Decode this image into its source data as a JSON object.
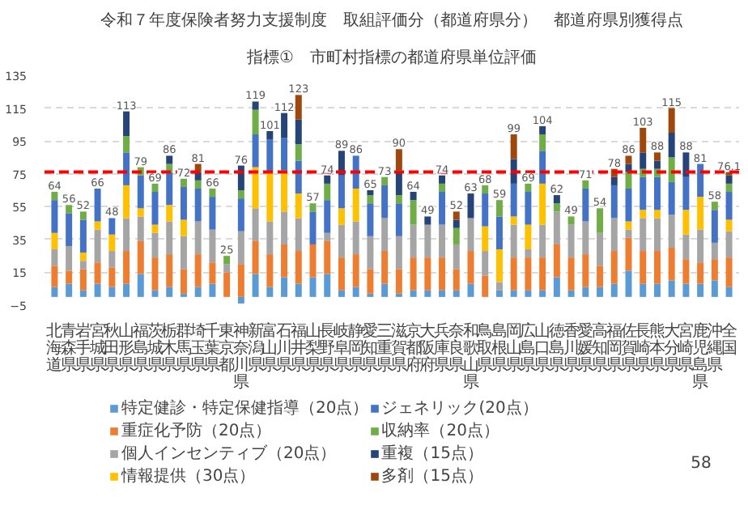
{
  "chart_data": {
    "type": "bar",
    "stacked": true,
    "title": "令和７年度保険者努力支援制度　取組評価分（都道府県分）　都道府県別獲得点",
    "subtitle": "指標①　市町村指標の都道府県単位評価",
    "categories": [
      "北海道",
      "青森県",
      "岩手県",
      "宮城県",
      "秋田県",
      "山形県",
      "福島県",
      "茨城県",
      "栃木県",
      "群馬県",
      "埼玉県",
      "千葉県",
      "東京都",
      "神奈川県",
      "新潟県",
      "富山県",
      "石川県",
      "福井県",
      "山梨県",
      "長野県",
      "岐阜県",
      "静岡県",
      "愛知県",
      "三重県",
      "滋賀県",
      "京都府",
      "大阪府",
      "兵庫県",
      "奈良県",
      "和歌山県",
      "鳥取県",
      "島根県",
      "岡山県",
      "広島県",
      "山口県",
      "徳島県",
      "香川県",
      "愛媛県",
      "高知県",
      "福岡県",
      "佐賀県",
      "長崎県",
      "熊本県",
      "大分県",
      "宮崎県",
      "鹿児島県",
      "沖縄県",
      "全国"
    ],
    "series": [
      {
        "name": "特定健診・特定保健指導（20点）",
        "color": "#5b9bd5",
        "values": [
          6,
          8,
          4,
          8,
          6,
          8,
          14,
          4,
          6,
          2,
          6,
          8,
          0,
          -4,
          14,
          6,
          12,
          8,
          12,
          14,
          4,
          6,
          2,
          8,
          2,
          4,
          4,
          4,
          4,
          8,
          0,
          4,
          4,
          4,
          4,
          12,
          4,
          6,
          6,
          8,
          16,
          8,
          8,
          10,
          8,
          8,
          10,
          6
        ]
      },
      {
        "name": "重症化予防（20点）",
        "color": "#ed7d31",
        "values": [
          13,
          8,
          13,
          13,
          12,
          20,
          20,
          20,
          20,
          15,
          20,
          13,
          15,
          20,
          20,
          20,
          20,
          20,
          20,
          20,
          20,
          20,
          15,
          20,
          15,
          20,
          20,
          20,
          13,
          20,
          13,
          0,
          20,
          20,
          20,
          20,
          20,
          20,
          13,
          20,
          20,
          20,
          20,
          20,
          15,
          13,
          13,
          18
        ]
      },
      {
        "name": "個人インセンティブ（20点）",
        "color": "#a5a5a5",
        "values": [
          10,
          15,
          5,
          20,
          10,
          20,
          15,
          15,
          20,
          20,
          20,
          20,
          5,
          20,
          20,
          20,
          20,
          20,
          0,
          5,
          20,
          20,
          20,
          20,
          20,
          20,
          20,
          20,
          15,
          20,
          15,
          5,
          20,
          5,
          20,
          20,
          20,
          20,
          20,
          20,
          5,
          20,
          20,
          20,
          15,
          20,
          10,
          16
        ]
      },
      {
        "name": "情報提供（30点）",
        "color": "#ffc000",
        "values": [
          10,
          0,
          5,
          5,
          10,
          20,
          5,
          5,
          10,
          10,
          0,
          0,
          0,
          0,
          25,
          30,
          25,
          15,
          0,
          0,
          10,
          20,
          0,
          0,
          0,
          0,
          0,
          0,
          0,
          0,
          15,
          20,
          5,
          15,
          25,
          0,
          0,
          0,
          0,
          0,
          5,
          5,
          5,
          0,
          15,
          20,
          0,
          7
        ]
      },
      {
        "name": "ジェネリック(20点）",
        "color": "#4472c4",
        "values": [
          20,
          20,
          20,
          20,
          10,
          20,
          20,
          20,
          20,
          20,
          20,
          20,
          0,
          20,
          20,
          20,
          20,
          20,
          20,
          20,
          20,
          20,
          20,
          20,
          20,
          0,
          0,
          20,
          0,
          0,
          20,
          20,
          20,
          20,
          20,
          0,
          0,
          20,
          0,
          20,
          20,
          20,
          20,
          20,
          20,
          20,
          20,
          17
        ]
      },
      {
        "name": "収納率（20点）",
        "color": "#70ad47",
        "values": [
          5,
          5,
          5,
          0,
          0,
          10,
          5,
          5,
          5,
          5,
          5,
          5,
          5,
          5,
          15,
          0,
          0,
          10,
          5,
          10,
          0,
          0,
          5,
          5,
          5,
          15,
          0,
          5,
          10,
          0,
          5,
          10,
          0,
          5,
          10,
          5,
          5,
          5,
          15,
          0,
          10,
          5,
          5,
          15,
          0,
          0,
          5,
          5
        ]
      },
      {
        "name": "重複（15点）",
        "color": "#264478",
        "values": [
          0,
          0,
          0,
          0,
          0,
          15,
          0,
          0,
          5,
          0,
          5,
          0,
          0,
          15,
          5,
          5,
          15,
          15,
          0,
          5,
          15,
          0,
          3,
          0,
          15,
          5,
          5,
          5,
          5,
          15,
          0,
          0,
          15,
          0,
          5,
          5,
          0,
          0,
          0,
          5,
          5,
          10,
          5,
          15,
          15,
          0,
          0,
          5
        ]
      },
      {
        "name": "多剤（15点）",
        "color": "#9e480e",
        "values": [
          0,
          0,
          0,
          0,
          0,
          0,
          0,
          0,
          0,
          0,
          5,
          0,
          0,
          0,
          0,
          0,
          0,
          15,
          0,
          0,
          0,
          0,
          0,
          0,
          13,
          0,
          0,
          0,
          5,
          0,
          0,
          0,
          15,
          0,
          0,
          0,
          0,
          0,
          0,
          5,
          5,
          15,
          5,
          15,
          0,
          0,
          0,
          2
        ]
      }
    ],
    "totals": [
      "64",
      "56",
      "52",
      "66",
      "48",
      "113",
      "79",
      "69",
      "86",
      "72",
      "81",
      "66",
      "25",
      "76",
      "119",
      "101",
      "112",
      "123",
      "57",
      "74",
      "89",
      "86",
      "65",
      "73",
      "90",
      "64",
      "49",
      "74",
      "52",
      "63",
      "68",
      "59",
      "99",
      "69",
      "104",
      "62",
      "49",
      "71",
      "54",
      "78",
      "86",
      "103",
      "88",
      "115",
      "88",
      "81",
      "58",
      "76.1"
    ],
    "ylim": [
      -5,
      135
    ],
    "yticks": [
      -5,
      15,
      35,
      55,
      75,
      95,
      115,
      135
    ],
    "grid": "y",
    "legend": "bottom",
    "ref_lines": [
      {
        "axis": "y",
        "value": 76.1,
        "color": "#ff0000",
        "line_style": "dashed"
      }
    ],
    "annotations": [
      "58"
    ]
  }
}
